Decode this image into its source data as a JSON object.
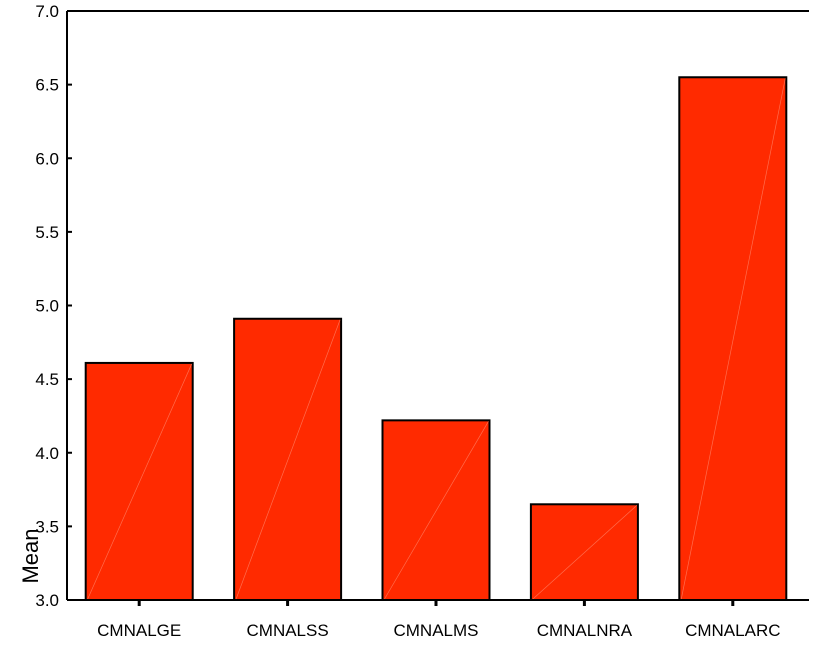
{
  "chart_data": {
    "type": "bar",
    "title": "",
    "xlabel": "",
    "ylabel": "Mean",
    "categories": [
      "CMNALGE",
      "CMNALSS",
      "CMNALMS",
      "CMNALNRA",
      "CMNALARC"
    ],
    "values": [
      4.61,
      4.91,
      4.22,
      3.65,
      6.55
    ],
    "ylim": [
      3.0,
      7.0
    ],
    "yticks": [
      "3.0",
      "3.5",
      "4.0",
      "4.5",
      "5.0",
      "5.5",
      "6.0",
      "6.5",
      "7.0"
    ],
    "grid": false,
    "legend": "none",
    "bar_color": "#ff2a00"
  }
}
